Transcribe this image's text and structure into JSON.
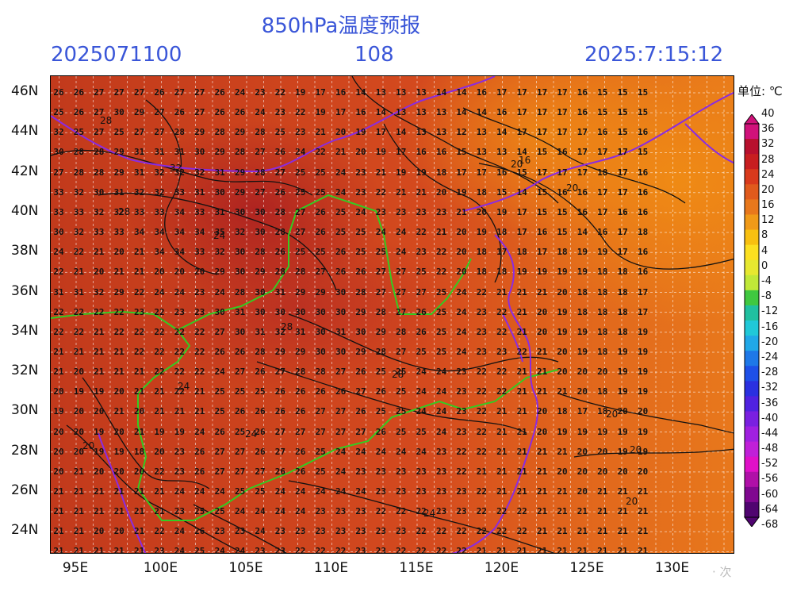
{
  "header": {
    "title": "850hPa温度预报",
    "init_time": "2025071100",
    "forecast_hour": "108",
    "valid_time": "2025:7:15:12"
  },
  "map": {
    "lat_labels": [
      "46N",
      "44N",
      "42N",
      "40N",
      "38N",
      "36N",
      "34N",
      "32N",
      "30N",
      "28N",
      "26N",
      "24N"
    ],
    "lon_labels": [
      "95E",
      "100E",
      "105E",
      "110E",
      "115E",
      "120E",
      "125E",
      "130E"
    ],
    "contour_labels": [
      "28",
      "32",
      "28",
      "24",
      "28",
      "20",
      "16",
      "20",
      "24",
      "28",
      "24",
      "24",
      "20",
      "20",
      "20",
      "20"
    ],
    "temp_rows": [
      [
        "26",
        "26",
        "27",
        "27",
        "27",
        "26",
        "27",
        "27",
        "26",
        "24",
        "23",
        "22",
        "19",
        "17",
        "16",
        "14",
        "13",
        "13",
        "13",
        "14",
        "14",
        "16",
        "17",
        "17",
        "17",
        "17",
        "16",
        "15",
        "15",
        "15"
      ],
      [
        "25",
        "26",
        "27",
        "30",
        "29",
        "27",
        "26",
        "27",
        "26",
        "26",
        "24",
        "23",
        "22",
        "19",
        "17",
        "16",
        "14",
        "13",
        "13",
        "13",
        "14",
        "14",
        "16",
        "17",
        "17",
        "17",
        "16",
        "15",
        "15",
        "15"
      ],
      [
        "32",
        "25",
        "27",
        "25",
        "27",
        "27",
        "28",
        "29",
        "28",
        "29",
        "28",
        "25",
        "23",
        "21",
        "20",
        "19",
        "17",
        "14",
        "13",
        "13",
        "12",
        "13",
        "14",
        "17",
        "17",
        "17",
        "17",
        "16",
        "15",
        "16"
      ],
      [
        "30",
        "28",
        "28",
        "29",
        "31",
        "31",
        "31",
        "30",
        "29",
        "28",
        "27",
        "26",
        "24",
        "22",
        "21",
        "20",
        "19",
        "17",
        "16",
        "16",
        "15",
        "13",
        "13",
        "14",
        "15",
        "16",
        "17",
        "17",
        "17",
        "15"
      ],
      [
        "27",
        "28",
        "28",
        "29",
        "31",
        "32",
        "32",
        "32",
        "31",
        "29",
        "28",
        "27",
        "25",
        "25",
        "24",
        "23",
        "21",
        "19",
        "19",
        "18",
        "17",
        "17",
        "16",
        "15",
        "17",
        "17",
        "17",
        "18",
        "17",
        "16"
      ],
      [
        "33",
        "32",
        "30",
        "31",
        "32",
        "32",
        "33",
        "31",
        "30",
        "29",
        "27",
        "26",
        "25",
        "25",
        "24",
        "23",
        "22",
        "21",
        "21",
        "20",
        "19",
        "18",
        "15",
        "14",
        "15",
        "16",
        "16",
        "17",
        "17",
        "16"
      ],
      [
        "33",
        "33",
        "32",
        "32",
        "33",
        "33",
        "34",
        "33",
        "31",
        "30",
        "30",
        "28",
        "27",
        "26",
        "25",
        "24",
        "23",
        "23",
        "23",
        "23",
        "21",
        "20",
        "19",
        "17",
        "15",
        "15",
        "16",
        "17",
        "16",
        "16"
      ],
      [
        "30",
        "32",
        "33",
        "33",
        "34",
        "34",
        "34",
        "34",
        "35",
        "32",
        "30",
        "28",
        "27",
        "26",
        "25",
        "25",
        "24",
        "24",
        "22",
        "21",
        "20",
        "19",
        "18",
        "17",
        "16",
        "15",
        "14",
        "16",
        "17",
        "18"
      ],
      [
        "24",
        "22",
        "21",
        "20",
        "21",
        "34",
        "34",
        "33",
        "32",
        "30",
        "28",
        "26",
        "25",
        "25",
        "26",
        "25",
        "25",
        "24",
        "23",
        "22",
        "20",
        "18",
        "17",
        "18",
        "17",
        "18",
        "19",
        "19",
        "17",
        "16"
      ],
      [
        "22",
        "21",
        "20",
        "21",
        "21",
        "20",
        "20",
        "20",
        "29",
        "30",
        "29",
        "28",
        "28",
        "27",
        "26",
        "26",
        "27",
        "27",
        "25",
        "22",
        "20",
        "18",
        "18",
        "19",
        "19",
        "19",
        "19",
        "18",
        "18",
        "16"
      ],
      [
        "31",
        "31",
        "32",
        "29",
        "22",
        "24",
        "24",
        "23",
        "24",
        "28",
        "30",
        "31",
        "29",
        "29",
        "30",
        "28",
        "27",
        "27",
        "27",
        "25",
        "24",
        "22",
        "21",
        "21",
        "21",
        "20",
        "18",
        "18",
        "18",
        "17"
      ],
      [
        "22",
        "22",
        "22",
        "22",
        "23",
        "22",
        "23",
        "23",
        "30",
        "31",
        "30",
        "30",
        "30",
        "30",
        "30",
        "29",
        "28",
        "27",
        "26",
        "25",
        "24",
        "23",
        "22",
        "21",
        "20",
        "19",
        "18",
        "18",
        "18",
        "17"
      ],
      [
        "22",
        "22",
        "21",
        "22",
        "22",
        "22",
        "22",
        "22",
        "27",
        "30",
        "31",
        "32",
        "31",
        "30",
        "31",
        "30",
        "29",
        "28",
        "26",
        "25",
        "24",
        "23",
        "22",
        "21",
        "20",
        "19",
        "19",
        "18",
        "18",
        "19"
      ],
      [
        "21",
        "21",
        "21",
        "21",
        "22",
        "22",
        "22",
        "22",
        "26",
        "26",
        "28",
        "29",
        "29",
        "30",
        "30",
        "29",
        "28",
        "27",
        "25",
        "25",
        "24",
        "23",
        "23",
        "22",
        "21",
        "20",
        "19",
        "18",
        "19",
        "19"
      ],
      [
        "21",
        "20",
        "21",
        "21",
        "21",
        "22",
        "22",
        "22",
        "24",
        "27",
        "26",
        "27",
        "28",
        "28",
        "27",
        "26",
        "25",
        "25",
        "24",
        "24",
        "23",
        "22",
        "22",
        "21",
        "21",
        "20",
        "20",
        "20",
        "19",
        "19"
      ],
      [
        "20",
        "19",
        "19",
        "20",
        "21",
        "21",
        "22",
        "21",
        "25",
        "25",
        "25",
        "26",
        "26",
        "26",
        "26",
        "27",
        "26",
        "25",
        "24",
        "24",
        "23",
        "22",
        "22",
        "21",
        "21",
        "21",
        "20",
        "18",
        "19",
        "19"
      ],
      [
        "19",
        "20",
        "20",
        "21",
        "20",
        "21",
        "21",
        "21",
        "25",
        "26",
        "26",
        "26",
        "26",
        "27",
        "27",
        "26",
        "25",
        "25",
        "24",
        "24",
        "23",
        "22",
        "21",
        "21",
        "20",
        "18",
        "17",
        "18",
        "20",
        "20"
      ],
      [
        "20",
        "20",
        "19",
        "20",
        "21",
        "19",
        "19",
        "24",
        "26",
        "25",
        "26",
        "27",
        "27",
        "27",
        "27",
        "27",
        "26",
        "25",
        "25",
        "24",
        "23",
        "22",
        "21",
        "21",
        "20",
        "19",
        "19",
        "19",
        "19",
        "19"
      ],
      [
        "20",
        "20",
        "19",
        "19",
        "18",
        "20",
        "23",
        "26",
        "27",
        "27",
        "26",
        "27",
        "26",
        "25",
        "24",
        "24",
        "24",
        "24",
        "24",
        "23",
        "22",
        "22",
        "21",
        "21",
        "21",
        "21",
        "20",
        "20",
        "19",
        "19"
      ],
      [
        "20",
        "21",
        "20",
        "20",
        "20",
        "22",
        "23",
        "26",
        "27",
        "27",
        "27",
        "26",
        "26",
        "25",
        "24",
        "23",
        "23",
        "23",
        "23",
        "23",
        "22",
        "21",
        "21",
        "21",
        "21",
        "20",
        "20",
        "20",
        "20",
        "20"
      ],
      [
        "21",
        "21",
        "21",
        "21",
        "21",
        "21",
        "24",
        "24",
        "24",
        "25",
        "25",
        "24",
        "24",
        "24",
        "24",
        "24",
        "23",
        "23",
        "23",
        "23",
        "23",
        "22",
        "21",
        "21",
        "21",
        "21",
        "20",
        "21",
        "21",
        "21"
      ],
      [
        "21",
        "21",
        "21",
        "21",
        "21",
        "21",
        "23",
        "25",
        "25",
        "24",
        "24",
        "24",
        "24",
        "23",
        "23",
        "23",
        "22",
        "22",
        "22",
        "23",
        "23",
        "22",
        "22",
        "22",
        "21",
        "21",
        "21",
        "21",
        "21",
        "21"
      ],
      [
        "21",
        "21",
        "20",
        "20",
        "21",
        "22",
        "24",
        "26",
        "23",
        "23",
        "24",
        "23",
        "23",
        "23",
        "23",
        "23",
        "23",
        "23",
        "22",
        "22",
        "22",
        "22",
        "22",
        "22",
        "21",
        "21",
        "21",
        "21",
        "21",
        "21"
      ],
      [
        "21",
        "21",
        "21",
        "21",
        "21",
        "23",
        "24",
        "25",
        "24",
        "24",
        "23",
        "23",
        "22",
        "22",
        "22",
        "23",
        "23",
        "22",
        "22",
        "22",
        "22",
        "21",
        "21",
        "21",
        "21",
        "21",
        "21",
        "21",
        "21",
        "21"
      ],
      [
        "21",
        "21",
        "21",
        "21",
        "21",
        "23",
        "24",
        "25",
        "25",
        "24",
        "23",
        "23",
        "22",
        "22",
        "22",
        "22",
        "22",
        "22",
        "22",
        "22",
        "22",
        "21",
        "21",
        "21",
        "21",
        "21",
        "21",
        "21",
        "20",
        "20"
      ]
    ]
  },
  "colorbar": {
    "unit_label": "单位: ℃",
    "labels": [
      "40",
      "36",
      "32",
      "28",
      "24",
      "20",
      "16",
      "12",
      "8",
      "4",
      "0",
      "-4",
      "-8",
      "-12",
      "-16",
      "-20",
      "-24",
      "-28",
      "-32",
      "-36",
      "-40",
      "-44",
      "-48",
      "-52",
      "-56",
      "-60",
      "-64",
      "-68"
    ],
    "colors": [
      "#d0127a",
      "#b8102e",
      "#c81e20",
      "#d93a1c",
      "#e05a1c",
      "#e8781c",
      "#f09a18",
      "#f8c010",
      "#fce020",
      "#e6e830",
      "#c0e838",
      "#40c840",
      "#20c0a0",
      "#20c8d8",
      "#20a8e8",
      "#1e78e8",
      "#1e50e8",
      "#2a30e0",
      "#5022e0",
      "#7a20e0",
      "#a020e0",
      "#c020d8",
      "#e010c8",
      "#b010a8",
      "#800890",
      "#500470"
    ]
  },
  "watermark": "· 次"
}
